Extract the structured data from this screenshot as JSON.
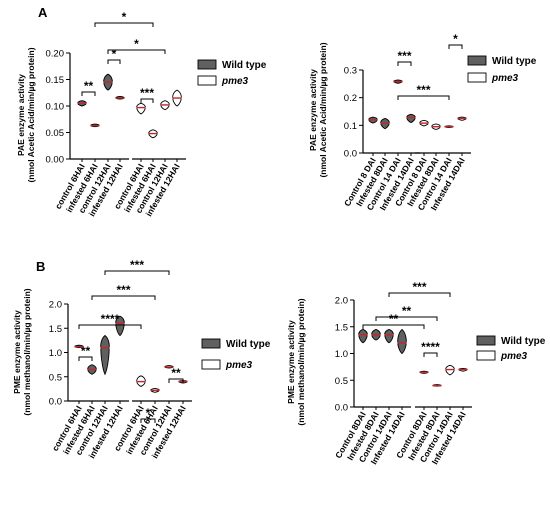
{
  "panel_labels": {
    "a": "A",
    "b": "B"
  },
  "legend": {
    "wild_type": {
      "label": "Wild type",
      "fill": "#606060"
    },
    "pme3": {
      "label": "pme3",
      "fill": "#ffffff"
    }
  },
  "colors": {
    "median": "#c0272d",
    "violin_stroke": "#000000"
  },
  "chart_data": [
    {
      "type": "violin",
      "ylabel": "PAE enzyme activity",
      "ylabel2": "(nmol Acetic Acid/min/µg protein)",
      "ylim": [
        0,
        0.2
      ],
      "yticks": [
        "0.00",
        "0.05",
        "0.10",
        "0.15",
        "0.20"
      ],
      "categories": [
        "control 6HAI",
        "infested 6HAI",
        "control 12HAI",
        "infested 12HAI",
        "control 6HAI",
        "infested 6HAI",
        "control 12HAI",
        "infested 12HAI"
      ],
      "genotype": [
        "wild_type",
        "wild_type",
        "wild_type",
        "wild_type",
        "pme3",
        "pme3",
        "pme3",
        "pme3"
      ],
      "values": [
        0.105,
        0.063,
        0.145,
        0.115,
        0.097,
        0.048,
        0.102,
        0.115
      ],
      "value_ranges": [
        [
          0.1,
          0.11
        ],
        [
          0.061,
          0.066
        ],
        [
          0.13,
          0.16
        ],
        [
          0.113,
          0.118
        ],
        [
          0.085,
          0.105
        ],
        [
          0.04,
          0.055
        ],
        [
          0.093,
          0.11
        ],
        [
          0.1,
          0.13
        ]
      ],
      "annotations": [
        {
          "from": 0,
          "to": 1,
          "label": "**"
        },
        {
          "from": 2,
          "to": 3,
          "label": "*"
        },
        {
          "from": 4,
          "to": 5,
          "label": "***"
        },
        {
          "from": 2,
          "to": 6,
          "label": "*"
        },
        {
          "from": 1,
          "to": 5,
          "label": "*"
        }
      ]
    },
    {
      "type": "violin",
      "ylabel": "PAE enzyme activity",
      "ylabel2": "(nmol Acetic Acid/min/µg protein)",
      "ylim": [
        0,
        0.3
      ],
      "yticks": [
        "0.0",
        "0.1",
        "0.2",
        "0.3"
      ],
      "categories": [
        "Control 8 DAI",
        "Infested 8DAI",
        "Control 14 DAI",
        "Infested 14DAI",
        "Control 8 DAI",
        "Infested 8DAI",
        "Control 14 DAI",
        "Infested 14DAI"
      ],
      "genotype": [
        "wild_type",
        "wild_type",
        "wild_type",
        "wild_type",
        "pme3",
        "pme3",
        "pme3",
        "pme3"
      ],
      "values": [
        0.12,
        0.108,
        0.258,
        0.128,
        0.108,
        0.095,
        0.095,
        0.125
      ],
      "value_ranges": [
        [
          0.108,
          0.13
        ],
        [
          0.088,
          0.125
        ],
        [
          0.252,
          0.264
        ],
        [
          0.11,
          0.14
        ],
        [
          0.098,
          0.118
        ],
        [
          0.085,
          0.105
        ],
        [
          0.092,
          0.098
        ],
        [
          0.118,
          0.13
        ]
      ],
      "annotations": [
        {
          "from": 2,
          "to": 3,
          "label": "***"
        },
        {
          "from": 6,
          "to": 7,
          "label": "*"
        },
        {
          "from": 2,
          "to": 6,
          "label": "***"
        }
      ]
    },
    {
      "type": "violin",
      "ylabel": "PME enzyme activity",
      "ylabel2": "(nmol methanol/min/µg protein)",
      "ylim": [
        0,
        2.0
      ],
      "yticks": [
        "0.0",
        "0.5",
        "1.0",
        "1.5",
        "2.0"
      ],
      "categories": [
        "control 6HAI",
        "infested 6HAI",
        "control 12HAI",
        "infested 12HAI",
        "control 6HAI",
        "infested 6HAI",
        "control 12HAI",
        "infested 12HAI"
      ],
      "genotype": [
        "wild_type",
        "wild_type",
        "wild_type",
        "wild_type",
        "pme3",
        "pme3",
        "pme3",
        "pme3"
      ],
      "values": [
        1.12,
        0.65,
        1.1,
        1.6,
        0.4,
        0.22,
        0.7,
        0.4
      ],
      "value_ranges": [
        [
          1.1,
          1.15
        ],
        [
          0.55,
          0.75
        ],
        [
          0.55,
          1.35
        ],
        [
          1.35,
          1.75
        ],
        [
          0.3,
          0.52
        ],
        [
          0.18,
          0.26
        ],
        [
          0.68,
          0.73
        ],
        [
          0.37,
          0.42
        ]
      ],
      "annotations": [
        {
          "from": 0,
          "to": 1,
          "label": "**"
        },
        {
          "from": 4,
          "to": 5,
          "label": "*"
        },
        {
          "from": 6,
          "to": 7,
          "label": "**"
        },
        {
          "from": 0,
          "to": 4,
          "label": "****"
        },
        {
          "from": 1,
          "to": 5,
          "label": "***"
        },
        {
          "from": 2,
          "to": 6,
          "label": "***"
        }
      ]
    },
    {
      "type": "violin",
      "ylabel": "PME enzyme activity",
      "ylabel2": "(nmol methanol/min/µg protein)",
      "ylim": [
        0,
        2.0
      ],
      "yticks": [
        "0.0",
        "0.5",
        "1.0",
        "1.5",
        "2.0"
      ],
      "categories": [
        "Control 8DAI",
        "Infested 8DAI",
        "Control 14DAI",
        "Infested 14DAI",
        "Control 8DAI",
        "Infested 8DAI",
        "Control 14DAI",
        "Infested 14DAI"
      ],
      "genotype": [
        "wild_type",
        "wild_type",
        "wild_type",
        "wild_type",
        "pme3",
        "pme3",
        "pme3",
        "pme3"
      ],
      "values": [
        1.35,
        1.35,
        1.35,
        1.2,
        0.65,
        0.4,
        0.7,
        0.7
      ],
      "value_ranges": [
        [
          1.2,
          1.45
        ],
        [
          1.25,
          1.45
        ],
        [
          1.2,
          1.45
        ],
        [
          1.0,
          1.45
        ],
        [
          0.63,
          0.67
        ],
        [
          0.39,
          0.42
        ],
        [
          0.6,
          0.78
        ],
        [
          0.67,
          0.72
        ]
      ],
      "annotations": [
        {
          "from": 4,
          "to": 5,
          "label": "****"
        },
        {
          "from": 0,
          "to": 4,
          "label": "**"
        },
        {
          "from": 1,
          "to": 5,
          "label": "**"
        },
        {
          "from": 2,
          "to": 6,
          "label": "***"
        }
      ]
    }
  ]
}
